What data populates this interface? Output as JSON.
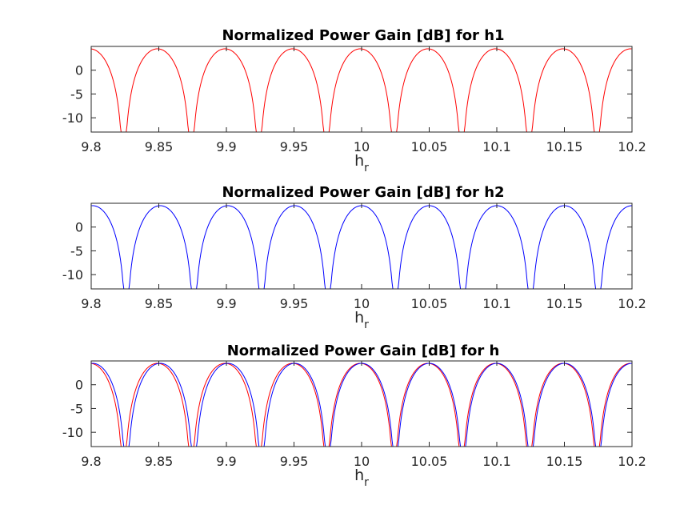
{
  "chart_data": [
    {
      "type": "line",
      "title": "Normalized Power Gain [dB] for h1",
      "xlabel": "h",
      "xlabel_subscript": "r",
      "ylabel": "",
      "xlim": [
        9.8,
        10.2
      ],
      "ylim": [
        -13,
        5
      ],
      "x_ticks": [
        "9.8",
        "9.85",
        "9.9",
        "9.95",
        "10",
        "10.05",
        "10.1",
        "10.15",
        "10.2"
      ],
      "y_ticks": [
        "0",
        "-5",
        "-10"
      ],
      "y_tick_values": [
        0,
        -5,
        -10
      ],
      "grid": false,
      "legend": "none",
      "series": [
        {
          "color": "#ff0000",
          "curve": "abs_sinc_db",
          "peak_db": 4.5,
          "peak_x": [
            9.8,
            9.85,
            9.9,
            9.95,
            10.0,
            10.05,
            10.1,
            10.15,
            10.2
          ],
          "null_x": [
            9.824,
            9.874,
            9.924,
            9.974,
            10.024,
            10.074,
            10.124,
            10.174
          ],
          "null_db": -13
        }
      ]
    },
    {
      "type": "line",
      "title": "Normalized Power Gain [dB] for h2",
      "xlabel": "h",
      "xlabel_subscript": "r",
      "ylabel": "",
      "xlim": [
        9.8,
        10.2
      ],
      "ylim": [
        -13,
        5
      ],
      "x_ticks": [
        "9.8",
        "9.85",
        "9.9",
        "9.95",
        "10",
        "10.05",
        "10.1",
        "10.15",
        "10.2"
      ],
      "y_ticks": [
        "0",
        "-5",
        "-10"
      ],
      "y_tick_values": [
        0,
        -5,
        -10
      ],
      "grid": false,
      "legend": "none",
      "series": [
        {
          "color": "#0000ff",
          "curve": "abs_sinc_db",
          "peak_db": 4.5,
          "peak_x": [
            9.8,
            9.85,
            9.9,
            9.95,
            10.0,
            10.05,
            10.1,
            10.15,
            10.2
          ],
          "null_x": [
            9.826,
            9.876,
            9.926,
            9.975,
            10.025,
            10.075,
            10.125,
            10.175
          ],
          "null_db": -13
        }
      ]
    },
    {
      "type": "line",
      "title": "Normalized Power Gain [dB] for h",
      "xlabel": "h",
      "xlabel_subscript": "r",
      "ylabel": "",
      "xlim": [
        9.8,
        10.2
      ],
      "ylim": [
        -13,
        5
      ],
      "x_ticks": [
        "9.8",
        "9.85",
        "9.9",
        "9.95",
        "10",
        "10.05",
        "10.1",
        "10.15",
        "10.2"
      ],
      "y_ticks": [
        "0",
        "-5",
        "-10"
      ],
      "y_tick_values": [
        0,
        -5,
        -10
      ],
      "grid": false,
      "legend": "none",
      "series": [
        {
          "color": "#ff0000",
          "curve": "abs_sinc_db",
          "peak_db": 4.5,
          "peak_x": [
            9.8,
            9.85,
            9.9,
            9.95,
            10.0,
            10.05,
            10.1,
            10.15,
            10.2
          ],
          "null_x": [
            9.824,
            9.874,
            9.924,
            9.974,
            10.024,
            10.074,
            10.124,
            10.174
          ],
          "null_db": -13
        },
        {
          "color": "#0000ff",
          "curve": "abs_sinc_db",
          "peak_db": 4.5,
          "peak_x": [
            9.8,
            9.85,
            9.9,
            9.95,
            10.0,
            10.05,
            10.1,
            10.15,
            10.2
          ],
          "null_x": [
            9.826,
            9.876,
            9.926,
            9.975,
            10.025,
            10.075,
            10.125,
            10.175
          ],
          "null_db": -13
        }
      ]
    }
  ]
}
